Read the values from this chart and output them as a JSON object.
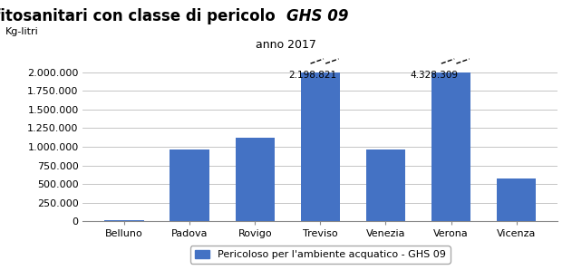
{
  "title_normal": "vendita di prodotti fitosanitari con classe di pericolo  ",
  "title_italic": "GHS 09",
  "subtitle": "anno 2017",
  "ylabel": "Kg-litri",
  "categories": [
    "Belluno",
    "Padova",
    "Rovigo",
    "Treviso",
    "Venezia",
    "Verona",
    "Vicenza"
  ],
  "values": [
    15000,
    970000,
    1120000,
    2000000,
    970000,
    2000000,
    570000
  ],
  "bar_color": "#4472C4",
  "legend_label": "Pericoloso per l'ambiente acquatico - GHS 09",
  "ylim": [
    0,
    2100000
  ],
  "yticks": [
    0,
    250000,
    500000,
    750000,
    1000000,
    1250000,
    1500000,
    1750000,
    2000000
  ],
  "ytick_labels": [
    "0",
    "250.000",
    "500.000",
    "750.000",
    "1.000.000",
    "1.250.000",
    "1.500.000",
    "1.750.000",
    "2.000.000"
  ],
  "annotation_treviso_label": "2.198.821",
  "annotation_treviso_idx": 3,
  "annotation_verona_label": "4.328.309",
  "annotation_verona_idx": 5,
  "background_color": "#FFFFFF",
  "grid_color": "#BBBBBB",
  "title_fontsize": 12,
  "subtitle_fontsize": 9,
  "axis_label_fontsize": 8,
  "tick_fontsize": 8,
  "legend_fontsize": 8,
  "annot_fontsize": 7.5
}
